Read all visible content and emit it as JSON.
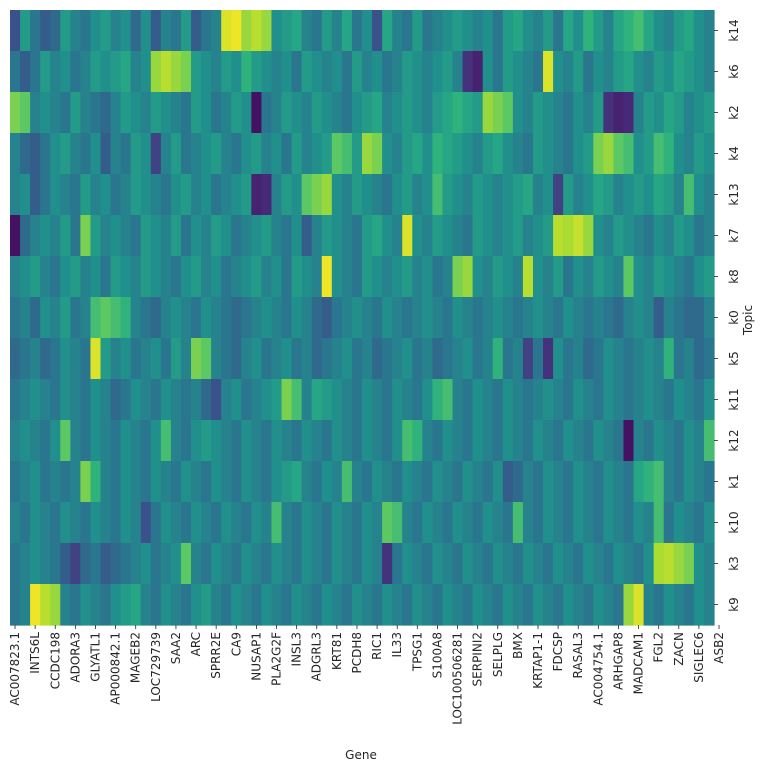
{
  "chart_data": {
    "type": "heatmap",
    "title": "",
    "xlabel": "Gene",
    "ylabel": "Topic",
    "colormap": "viridis",
    "color_range": [
      0,
      1
    ],
    "x_tick_labels": [
      "AC007823.1",
      "INTS6L",
      "CCDC198",
      "ADORA3",
      "GLYATL1",
      "AP000842.1",
      "MAGEB2",
      "LOC729739",
      "SAA2",
      "ARC",
      "SPRR2E",
      "CA9",
      "NUSAP1",
      "PLA2G2F",
      "INSL3",
      "ADGRL3",
      "KRT81",
      "PCDH8",
      "RIC1",
      "IL33",
      "TPSG1",
      "S100A8",
      "LOC100506281",
      "SERPINI2",
      "SELPLG",
      "BMX",
      "KRTAP1-1",
      "FDCSP",
      "RASAL3",
      "AC004754.1",
      "ARHGAP8",
      "MADCAM1",
      "FGL2",
      "ZACN",
      "SIGLEC6",
      "ASB2"
    ],
    "topics": [
      "k14",
      "k6",
      "k2",
      "k4",
      "k13",
      "k7",
      "k8",
      "k0",
      "k5",
      "k11",
      "k12",
      "k1",
      "k10",
      "k3",
      "k9"
    ],
    "n_columns": 70,
    "values": [
      [
        0.25,
        0.55,
        0.4,
        0.3,
        0.35,
        0.55,
        0.45,
        0.4,
        0.5,
        0.55,
        0.45,
        0.5,
        0.35,
        0.5,
        0.3,
        0.45,
        0.4,
        0.55,
        0.3,
        0.4,
        0.45,
        0.95,
        0.98,
        0.85,
        0.9,
        0.85,
        0.5,
        0.55,
        0.6,
        0.45,
        0.4,
        0.55,
        0.45,
        0.6,
        0.4,
        0.5,
        0.25,
        0.6,
        0.45,
        0.4,
        0.55,
        0.4,
        0.45,
        0.5,
        0.55,
        0.5,
        0.45,
        0.5,
        0.4,
        0.55,
        0.6,
        0.5,
        0.45,
        0.55,
        0.4,
        0.6,
        0.5,
        0.65,
        0.55,
        0.45,
        0.6,
        0.65,
        0.7,
        0.6,
        0.5,
        0.45,
        0.55,
        0.6,
        0.5,
        0.45
      ],
      [
        0.4,
        0.3,
        0.4,
        0.55,
        0.45,
        0.5,
        0.4,
        0.45,
        0.55,
        0.5,
        0.55,
        0.6,
        0.45,
        0.5,
        0.85,
        0.9,
        0.85,
        0.8,
        0.55,
        0.5,
        0.45,
        0.55,
        0.5,
        0.65,
        0.55,
        0.5,
        0.45,
        0.5,
        0.4,
        0.55,
        0.5,
        0.45,
        0.5,
        0.4,
        0.55,
        0.45,
        0.5,
        0.4,
        0.45,
        0.55,
        0.5,
        0.45,
        0.5,
        0.55,
        0.45,
        0.15,
        0.1,
        0.5,
        0.4,
        0.55,
        0.5,
        0.45,
        0.4,
        0.95,
        0.5,
        0.45,
        0.55,
        0.4,
        0.5,
        0.45,
        0.55,
        0.6,
        0.5,
        0.45,
        0.55,
        0.5,
        0.6,
        0.55,
        0.5,
        0.45
      ],
      [
        0.8,
        0.75,
        0.45,
        0.5,
        0.45,
        0.4,
        0.55,
        0.45,
        0.4,
        0.35,
        0.45,
        0.55,
        0.5,
        0.45,
        0.55,
        0.5,
        0.45,
        0.4,
        0.55,
        0.5,
        0.4,
        0.45,
        0.55,
        0.5,
        0.05,
        0.4,
        0.45,
        0.55,
        0.5,
        0.45,
        0.55,
        0.5,
        0.45,
        0.4,
        0.5,
        0.55,
        0.6,
        0.45,
        0.5,
        0.55,
        0.5,
        0.45,
        0.55,
        0.6,
        0.65,
        0.6,
        0.55,
        0.85,
        0.8,
        0.75,
        0.5,
        0.45,
        0.55,
        0.5,
        0.45,
        0.4,
        0.5,
        0.45,
        0.55,
        0.15,
        0.1,
        0.12,
        0.45,
        0.55,
        0.5,
        0.6,
        0.55,
        0.45,
        0.5,
        0.55
      ],
      [
        0.45,
        0.35,
        0.3,
        0.4,
        0.5,
        0.55,
        0.45,
        0.4,
        0.5,
        0.3,
        0.45,
        0.4,
        0.55,
        0.5,
        0.2,
        0.45,
        0.55,
        0.4,
        0.45,
        0.5,
        0.55,
        0.45,
        0.4,
        0.5,
        0.55,
        0.45,
        0.5,
        0.4,
        0.55,
        0.45,
        0.5,
        0.55,
        0.75,
        0.7,
        0.55,
        0.85,
        0.8,
        0.5,
        0.45,
        0.55,
        0.6,
        0.5,
        0.65,
        0.6,
        0.55,
        0.5,
        0.45,
        0.55,
        0.6,
        0.5,
        0.45,
        0.4,
        0.55,
        0.5,
        0.45,
        0.4,
        0.5,
        0.55,
        0.8,
        0.85,
        0.75,
        0.7,
        0.5,
        0.55,
        0.7,
        0.65,
        0.5,
        0.45,
        0.55,
        0.5
      ],
      [
        0.45,
        0.5,
        0.3,
        0.4,
        0.5,
        0.45,
        0.4,
        0.55,
        0.45,
        0.5,
        0.4,
        0.45,
        0.55,
        0.5,
        0.45,
        0.4,
        0.5,
        0.55,
        0.45,
        0.5,
        0.4,
        0.45,
        0.5,
        0.55,
        0.1,
        0.12,
        0.45,
        0.55,
        0.5,
        0.75,
        0.8,
        0.85,
        0.5,
        0.45,
        0.55,
        0.5,
        0.45,
        0.4,
        0.5,
        0.55,
        0.45,
        0.5,
        0.7,
        0.55,
        0.5,
        0.45,
        0.55,
        0.5,
        0.45,
        0.5,
        0.55,
        0.6,
        0.45,
        0.5,
        0.2,
        0.55,
        0.45,
        0.5,
        0.6,
        0.55,
        0.45,
        0.5,
        0.55,
        0.5,
        0.6,
        0.55,
        0.45,
        0.7,
        0.5,
        0.45
      ],
      [
        0.05,
        0.35,
        0.45,
        0.5,
        0.45,
        0.55,
        0.4,
        0.8,
        0.55,
        0.45,
        0.5,
        0.45,
        0.4,
        0.55,
        0.5,
        0.45,
        0.55,
        0.4,
        0.5,
        0.45,
        0.55,
        0.5,
        0.4,
        0.45,
        0.5,
        0.55,
        0.45,
        0.4,
        0.5,
        0.3,
        0.45,
        0.55,
        0.5,
        0.45,
        0.4,
        0.55,
        0.6,
        0.5,
        0.45,
        0.95,
        0.5,
        0.45,
        0.55,
        0.5,
        0.45,
        0.4,
        0.55,
        0.5,
        0.45,
        0.5,
        0.55,
        0.45,
        0.5,
        0.55,
        0.9,
        0.88,
        0.92,
        0.85,
        0.5,
        0.45,
        0.55,
        0.5,
        0.45,
        0.4,
        0.5,
        0.45,
        0.55,
        0.5,
        0.4,
        0.45
      ],
      [
        0.45,
        0.5,
        0.55,
        0.45,
        0.4,
        0.5,
        0.55,
        0.45,
        0.5,
        0.4,
        0.55,
        0.5,
        0.45,
        0.55,
        0.5,
        0.45,
        0.4,
        0.5,
        0.55,
        0.45,
        0.5,
        0.4,
        0.45,
        0.5,
        0.55,
        0.45,
        0.5,
        0.4,
        0.55,
        0.5,
        0.45,
        0.98,
        0.5,
        0.45,
        0.4,
        0.55,
        0.5,
        0.45,
        0.5,
        0.55,
        0.45,
        0.5,
        0.4,
        0.45,
        0.8,
        0.85,
        0.5,
        0.45,
        0.55,
        0.5,
        0.45,
        0.9,
        0.5,
        0.45,
        0.55,
        0.4,
        0.5,
        0.45,
        0.55,
        0.5,
        0.45,
        0.75,
        0.5,
        0.45,
        0.55,
        0.5,
        0.45,
        0.4,
        0.5,
        0.55
      ],
      [
        0.4,
        0.45,
        0.35,
        0.5,
        0.45,
        0.55,
        0.4,
        0.45,
        0.7,
        0.75,
        0.7,
        0.65,
        0.45,
        0.4,
        0.35,
        0.45,
        0.5,
        0.45,
        0.4,
        0.5,
        0.45,
        0.4,
        0.35,
        0.4,
        0.45,
        0.5,
        0.45,
        0.4,
        0.5,
        0.45,
        0.35,
        0.3,
        0.4,
        0.45,
        0.5,
        0.45,
        0.4,
        0.5,
        0.45,
        0.4,
        0.45,
        0.5,
        0.45,
        0.4,
        0.5,
        0.45,
        0.4,
        0.45,
        0.5,
        0.45,
        0.4,
        0.45,
        0.5,
        0.45,
        0.4,
        0.5,
        0.45,
        0.4,
        0.45,
        0.4,
        0.35,
        0.45,
        0.5,
        0.45,
        0.3,
        0.45,
        0.4,
        0.35,
        0.35,
        0.45
      ],
      [
        0.35,
        0.4,
        0.45,
        0.35,
        0.4,
        0.5,
        0.45,
        0.4,
        0.95,
        0.55,
        0.45,
        0.5,
        0.4,
        0.45,
        0.5,
        0.4,
        0.55,
        0.45,
        0.8,
        0.75,
        0.45,
        0.4,
        0.35,
        0.45,
        0.5,
        0.4,
        0.45,
        0.5,
        0.4,
        0.45,
        0.35,
        0.4,
        0.45,
        0.5,
        0.4,
        0.45,
        0.35,
        0.4,
        0.45,
        0.5,
        0.4,
        0.45,
        0.35,
        0.4,
        0.45,
        0.5,
        0.4,
        0.45,
        0.65,
        0.4,
        0.45,
        0.2,
        0.4,
        0.15,
        0.5,
        0.4,
        0.45,
        0.35,
        0.4,
        0.5,
        0.45,
        0.4,
        0.45,
        0.5,
        0.45,
        0.65,
        0.4,
        0.45,
        0.35,
        0.4
      ],
      [
        0.4,
        0.45,
        0.5,
        0.45,
        0.4,
        0.5,
        0.45,
        0.4,
        0.5,
        0.45,
        0.35,
        0.4,
        0.5,
        0.45,
        0.4,
        0.5,
        0.45,
        0.4,
        0.45,
        0.35,
        0.25,
        0.45,
        0.5,
        0.4,
        0.45,
        0.5,
        0.55,
        0.8,
        0.7,
        0.45,
        0.6,
        0.55,
        0.5,
        0.45,
        0.4,
        0.5,
        0.45,
        0.4,
        0.5,
        0.45,
        0.4,
        0.5,
        0.65,
        0.7,
        0.45,
        0.4,
        0.5,
        0.45,
        0.4,
        0.5,
        0.45,
        0.4,
        0.45,
        0.5,
        0.45,
        0.4,
        0.5,
        0.45,
        0.4,
        0.5,
        0.45,
        0.4,
        0.45,
        0.5,
        0.45,
        0.4,
        0.5,
        0.45,
        0.4,
        0.5
      ],
      [
        0.45,
        0.5,
        0.45,
        0.4,
        0.5,
        0.75,
        0.45,
        0.4,
        0.5,
        0.45,
        0.4,
        0.5,
        0.45,
        0.4,
        0.5,
        0.7,
        0.45,
        0.4,
        0.5,
        0.55,
        0.5,
        0.45,
        0.4,
        0.5,
        0.45,
        0.4,
        0.5,
        0.45,
        0.4,
        0.5,
        0.45,
        0.4,
        0.5,
        0.45,
        0.4,
        0.5,
        0.45,
        0.4,
        0.5,
        0.7,
        0.65,
        0.45,
        0.4,
        0.5,
        0.45,
        0.4,
        0.5,
        0.45,
        0.4,
        0.5,
        0.45,
        0.4,
        0.5,
        0.45,
        0.4,
        0.5,
        0.45,
        0.4,
        0.5,
        0.45,
        0.4,
        0.05,
        0.45,
        0.4,
        0.5,
        0.45,
        0.4,
        0.5,
        0.45,
        0.7
      ],
      [
        0.4,
        0.45,
        0.5,
        0.4,
        0.45,
        0.4,
        0.45,
        0.8,
        0.65,
        0.45,
        0.4,
        0.5,
        0.45,
        0.4,
        0.5,
        0.45,
        0.4,
        0.5,
        0.45,
        0.4,
        0.5,
        0.45,
        0.4,
        0.5,
        0.45,
        0.4,
        0.5,
        0.55,
        0.6,
        0.45,
        0.4,
        0.5,
        0.45,
        0.7,
        0.45,
        0.4,
        0.5,
        0.45,
        0.4,
        0.5,
        0.45,
        0.4,
        0.5,
        0.45,
        0.4,
        0.5,
        0.45,
        0.4,
        0.5,
        0.3,
        0.35,
        0.45,
        0.4,
        0.5,
        0.45,
        0.4,
        0.5,
        0.45,
        0.4,
        0.5,
        0.45,
        0.4,
        0.6,
        0.65,
        0.7,
        0.45,
        0.4,
        0.5,
        0.45,
        0.4
      ],
      [
        0.45,
        0.4,
        0.5,
        0.45,
        0.4,
        0.5,
        0.45,
        0.4,
        0.5,
        0.45,
        0.4,
        0.5,
        0.45,
        0.25,
        0.4,
        0.5,
        0.45,
        0.4,
        0.5,
        0.45,
        0.4,
        0.5,
        0.45,
        0.4,
        0.5,
        0.45,
        0.7,
        0.45,
        0.4,
        0.5,
        0.45,
        0.4,
        0.5,
        0.45,
        0.4,
        0.5,
        0.45,
        0.75,
        0.7,
        0.45,
        0.4,
        0.5,
        0.45,
        0.4,
        0.5,
        0.45,
        0.4,
        0.5,
        0.45,
        0.4,
        0.7,
        0.45,
        0.4,
        0.5,
        0.45,
        0.4,
        0.5,
        0.45,
        0.4,
        0.5,
        0.45,
        0.4,
        0.5,
        0.45,
        0.7,
        0.4,
        0.5,
        0.45,
        0.4,
        0.5
      ],
      [
        0.4,
        0.45,
        0.5,
        0.45,
        0.4,
        0.3,
        0.2,
        0.35,
        0.4,
        0.3,
        0.35,
        0.4,
        0.45,
        0.5,
        0.4,
        0.45,
        0.5,
        0.75,
        0.45,
        0.4,
        0.5,
        0.45,
        0.4,
        0.5,
        0.45,
        0.4,
        0.5,
        0.45,
        0.4,
        0.5,
        0.45,
        0.4,
        0.5,
        0.45,
        0.4,
        0.5,
        0.45,
        0.15,
        0.4,
        0.5,
        0.45,
        0.4,
        0.5,
        0.45,
        0.4,
        0.5,
        0.45,
        0.4,
        0.5,
        0.45,
        0.4,
        0.5,
        0.45,
        0.4,
        0.5,
        0.45,
        0.4,
        0.5,
        0.45,
        0.4,
        0.5,
        0.45,
        0.4,
        0.5,
        0.88,
        0.9,
        0.85,
        0.8,
        0.5,
        0.45
      ],
      [
        0.4,
        0.45,
        0.98,
        0.9,
        0.85,
        0.45,
        0.4,
        0.5,
        0.45,
        0.4,
        0.5,
        0.55,
        0.6,
        0.45,
        0.4,
        0.5,
        0.45,
        0.4,
        0.5,
        0.55,
        0.45,
        0.4,
        0.5,
        0.45,
        0.4,
        0.5,
        0.45,
        0.4,
        0.5,
        0.45,
        0.4,
        0.5,
        0.45,
        0.4,
        0.5,
        0.45,
        0.4,
        0.5,
        0.45,
        0.4,
        0.5,
        0.45,
        0.4,
        0.5,
        0.45,
        0.4,
        0.5,
        0.45,
        0.4,
        0.5,
        0.45,
        0.4,
        0.5,
        0.45,
        0.4,
        0.5,
        0.45,
        0.4,
        0.5,
        0.45,
        0.4,
        0.85,
        0.95,
        0.45,
        0.4,
        0.5,
        0.45,
        0.4,
        0.5,
        0.45
      ]
    ]
  }
}
